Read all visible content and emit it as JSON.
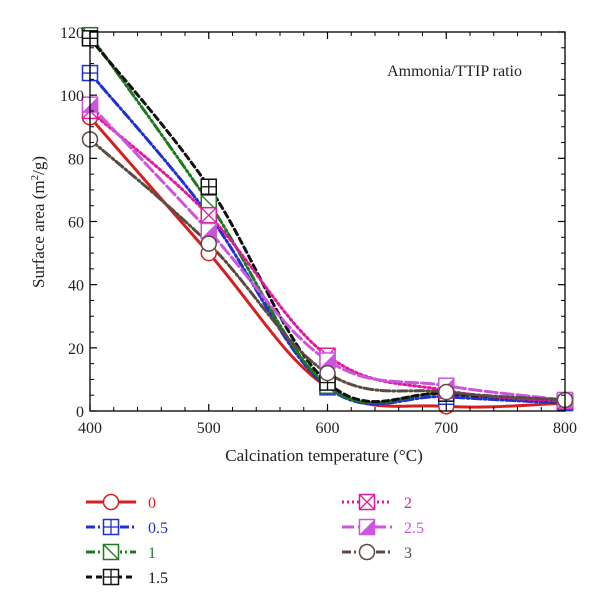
{
  "chart_data": {
    "type": "line",
    "title": "",
    "annotation": "Ammonia/TTIP ratio",
    "xlabel": "Calcination temperature (°C)",
    "ylabel_main": "Surface area (m",
    "ylabel_sup": "2",
    "ylabel_end": "/g)",
    "xlim": [
      400,
      800
    ],
    "ylim": [
      0,
      120
    ],
    "x_ticks": [
      400,
      500,
      600,
      700,
      800
    ],
    "y_ticks": [
      0,
      20,
      40,
      60,
      80,
      100,
      120
    ],
    "x_tick_labels": [
      "400",
      "500",
      "600",
      "700",
      "800"
    ],
    "y_tick_labels": [
      "0",
      "20",
      "40",
      "60",
      "80",
      "100",
      "120"
    ],
    "grid": false,
    "legend_placement": "bottom, two columns",
    "x": [
      400,
      500,
      600,
      700,
      800
    ],
    "series": [
      {
        "name": "0",
        "values": [
          93,
          50,
          7.5,
          1.5,
          2.5
        ],
        "color": "#d62020",
        "label_color": "#d62020",
        "dash": "solid",
        "marker": "circle"
      },
      {
        "name": "0.5",
        "values": [
          107,
          62,
          7.5,
          4.5,
          2.5
        ],
        "color": "#1f2fd0",
        "label_color": "#1f2fd0",
        "dash": "dashdot",
        "marker": "square-plus"
      },
      {
        "name": "1",
        "values": [
          119,
          66,
          8,
          5.5,
          3
        ],
        "color": "#1c7a1c",
        "label_color": "#1c7a1c",
        "dash": "dashdotdot",
        "marker": "square-backslash"
      },
      {
        "name": "1.5",
        "values": [
          118,
          71,
          9,
          5.5,
          3
        ],
        "color": "#111111",
        "label_color": "#111111",
        "dash": "dashed",
        "marker": "square-cross"
      },
      {
        "name": "2",
        "values": [
          95,
          62,
          17.5,
          6.5,
          3
        ],
        "color": "#e0199a",
        "label_color": "#e0199a",
        "dash": "dotted",
        "marker": "square-x"
      },
      {
        "name": "2.5",
        "values": [
          97,
          57,
          16,
          8,
          3.5
        ],
        "color": "#cc55dd",
        "label_color": "#cc55dd",
        "dash": "longdash",
        "marker": "square-half"
      },
      {
        "name": "3",
        "values": [
          86,
          53,
          12,
          6,
          3.5
        ],
        "color": "#5a4a42",
        "label_color": "#5a4a42",
        "dash": "dashdot",
        "marker": "circle"
      }
    ]
  }
}
